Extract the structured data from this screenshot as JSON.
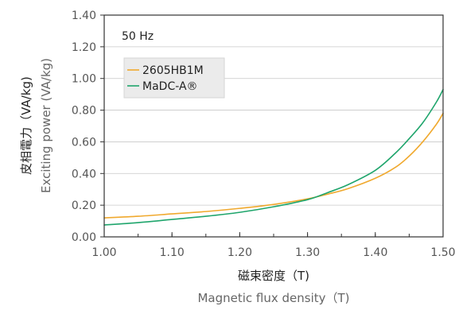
{
  "chart_data": {
    "type": "line",
    "annotation": "50 Hz",
    "xlabel_primary": "磁束密度（T)",
    "xlabel_secondary": "Magnetic flux density（T)",
    "ylabel_primary": "皮相電力（VA/kg)",
    "ylabel_secondary": "Exciting power (VA/kg)",
    "xlim": [
      1.0,
      1.5
    ],
    "ylim": [
      0.0,
      1.4
    ],
    "x_ticks": [
      "1.00",
      "1.10",
      "1.20",
      "1.30",
      "1.40",
      "1.50"
    ],
    "y_ticks": [
      "0.00",
      "0.20",
      "0.40",
      "0.60",
      "0.80",
      "1.00",
      "1.20",
      "1.40"
    ],
    "x_minor_step": 0.05,
    "legend_position": "top-left",
    "series": [
      {
        "name": "2605HB1M",
        "color": "#f0a92e",
        "x": [
          1.0,
          1.05,
          1.1,
          1.15,
          1.2,
          1.25,
          1.3,
          1.33,
          1.36,
          1.4,
          1.43,
          1.45,
          1.47,
          1.49,
          1.5
        ],
        "y": [
          0.12,
          0.13,
          0.145,
          0.16,
          0.18,
          0.205,
          0.24,
          0.27,
          0.305,
          0.37,
          0.44,
          0.51,
          0.6,
          0.71,
          0.78
        ]
      },
      {
        "name": "MaDC-A®",
        "color": "#1fa56c",
        "x": [
          1.0,
          1.05,
          1.1,
          1.15,
          1.2,
          1.25,
          1.3,
          1.33,
          1.36,
          1.4,
          1.43,
          1.45,
          1.47,
          1.49,
          1.5
        ],
        "y": [
          0.075,
          0.09,
          0.11,
          0.13,
          0.155,
          0.19,
          0.235,
          0.28,
          0.33,
          0.42,
          0.53,
          0.62,
          0.72,
          0.85,
          0.93
        ]
      }
    ]
  }
}
